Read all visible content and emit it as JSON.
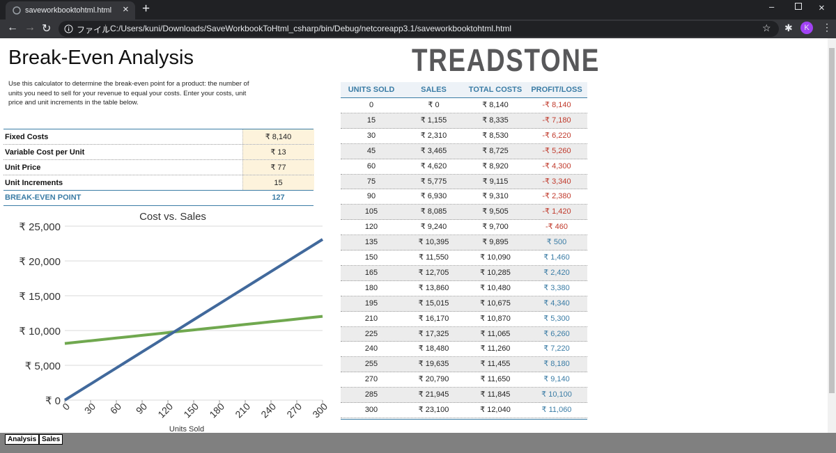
{
  "browser": {
    "tab_title": "saveworkbooktohtml.html",
    "url_prefix": "ファイル",
    "url": "C:/Users/kuni/Downloads/SaveWorkbookToHtml_csharp/bin/Debug/netcoreapp3.1/saveworkbooktohtml.html",
    "avatar": "K"
  },
  "header": {
    "title": "Break-Even Analysis",
    "description": "Use this calculator to determine the break-even point for a product: the number of units you need to sell for your revenue to equal your costs. Enter your costs, unit price and unit increments in the table below.",
    "logo": "TREADSTONE"
  },
  "inputs": {
    "rows": [
      [
        "Fixed Costs",
        "₹ 8,140"
      ],
      [
        "Variable Cost per Unit",
        "₹ 13"
      ],
      [
        "Unit Price",
        "₹ 77"
      ],
      [
        "Unit Increments",
        "15"
      ]
    ],
    "result": [
      "BREAK-EVEN POINT",
      "127"
    ]
  },
  "table": {
    "columns": [
      "UNITS SOLD",
      "SALES",
      "TOTAL COSTS",
      "PROFIT/LOSS"
    ],
    "rows": [
      [
        "0",
        "₹ 0",
        "₹ 8,140",
        "-₹ 8,140"
      ],
      [
        "15",
        "₹ 1,155",
        "₹ 8,335",
        "-₹ 7,180"
      ],
      [
        "30",
        "₹ 2,310",
        "₹ 8,530",
        "-₹ 6,220"
      ],
      [
        "45",
        "₹ 3,465",
        "₹ 8,725",
        "-₹ 5,260"
      ],
      [
        "60",
        "₹ 4,620",
        "₹ 8,920",
        "-₹ 4,300"
      ],
      [
        "75",
        "₹ 5,775",
        "₹ 9,115",
        "-₹ 3,340"
      ],
      [
        "90",
        "₹ 6,930",
        "₹ 9,310",
        "-₹ 2,380"
      ],
      [
        "105",
        "₹ 8,085",
        "₹ 9,505",
        "-₹ 1,420"
      ],
      [
        "120",
        "₹ 9,240",
        "₹ 9,700",
        "-₹ 460"
      ],
      [
        "135",
        "₹ 10,395",
        "₹ 9,895",
        "₹ 500"
      ],
      [
        "150",
        "₹ 11,550",
        "₹ 10,090",
        "₹ 1,460"
      ],
      [
        "165",
        "₹ 12,705",
        "₹ 10,285",
        "₹ 2,420"
      ],
      [
        "180",
        "₹ 13,860",
        "₹ 10,480",
        "₹ 3,380"
      ],
      [
        "195",
        "₹ 15,015",
        "₹ 10,675",
        "₹ 4,340"
      ],
      [
        "210",
        "₹ 16,170",
        "₹ 10,870",
        "₹ 5,300"
      ],
      [
        "225",
        "₹ 17,325",
        "₹ 11,065",
        "₹ 6,260"
      ],
      [
        "240",
        "₹ 18,480",
        "₹ 11,260",
        "₹ 7,220"
      ],
      [
        "255",
        "₹ 19,635",
        "₹ 11,455",
        "₹ 8,180"
      ],
      [
        "270",
        "₹ 20,790",
        "₹ 11,650",
        "₹ 9,140"
      ],
      [
        "285",
        "₹ 21,945",
        "₹ 11,845",
        "₹ 10,100"
      ],
      [
        "300",
        "₹ 23,100",
        "₹ 12,040",
        "₹ 11,060"
      ]
    ]
  },
  "chart_data": {
    "type": "line",
    "title": "Cost vs. Sales",
    "x_label": "Units Sold",
    "x": [
      0,
      15,
      30,
      45,
      60,
      75,
      90,
      105,
      120,
      135,
      150,
      165,
      180,
      195,
      210,
      225,
      240,
      255,
      270,
      285,
      300
    ],
    "series": [
      {
        "color": "#41699c",
        "values": [
          0,
          1155,
          2310,
          3465,
          4620,
          5775,
          6930,
          8085,
          9240,
          10395,
          11550,
          12705,
          13860,
          15015,
          16170,
          17325,
          18480,
          19635,
          20790,
          21945,
          23100
        ]
      },
      {
        "color": "#70a84f",
        "values": [
          8140,
          8335,
          8530,
          8725,
          8920,
          9115,
          9310,
          9505,
          9700,
          9895,
          10090,
          10285,
          10480,
          10675,
          10870,
          11065,
          11260,
          11455,
          11650,
          11845,
          12040
        ]
      }
    ],
    "xlim": [
      0,
      300
    ],
    "xticks": [
      0,
      30,
      60,
      90,
      120,
      150,
      180,
      210,
      240,
      270,
      300
    ],
    "ylim": [
      0,
      25000
    ],
    "yticks": [
      {
        "value": 0,
        "label": "₹ 0"
      },
      {
        "value": 5000,
        "label": "₹ 5,000"
      },
      {
        "value": 10000,
        "label": "₹ 10,000"
      },
      {
        "value": 15000,
        "label": "₹ 15,000"
      },
      {
        "value": 20000,
        "label": "₹ 20,000"
      },
      {
        "value": 25000,
        "label": "₹ 25,000"
      }
    ],
    "grid": true
  },
  "sheets": [
    "Analysis",
    "Sales"
  ]
}
